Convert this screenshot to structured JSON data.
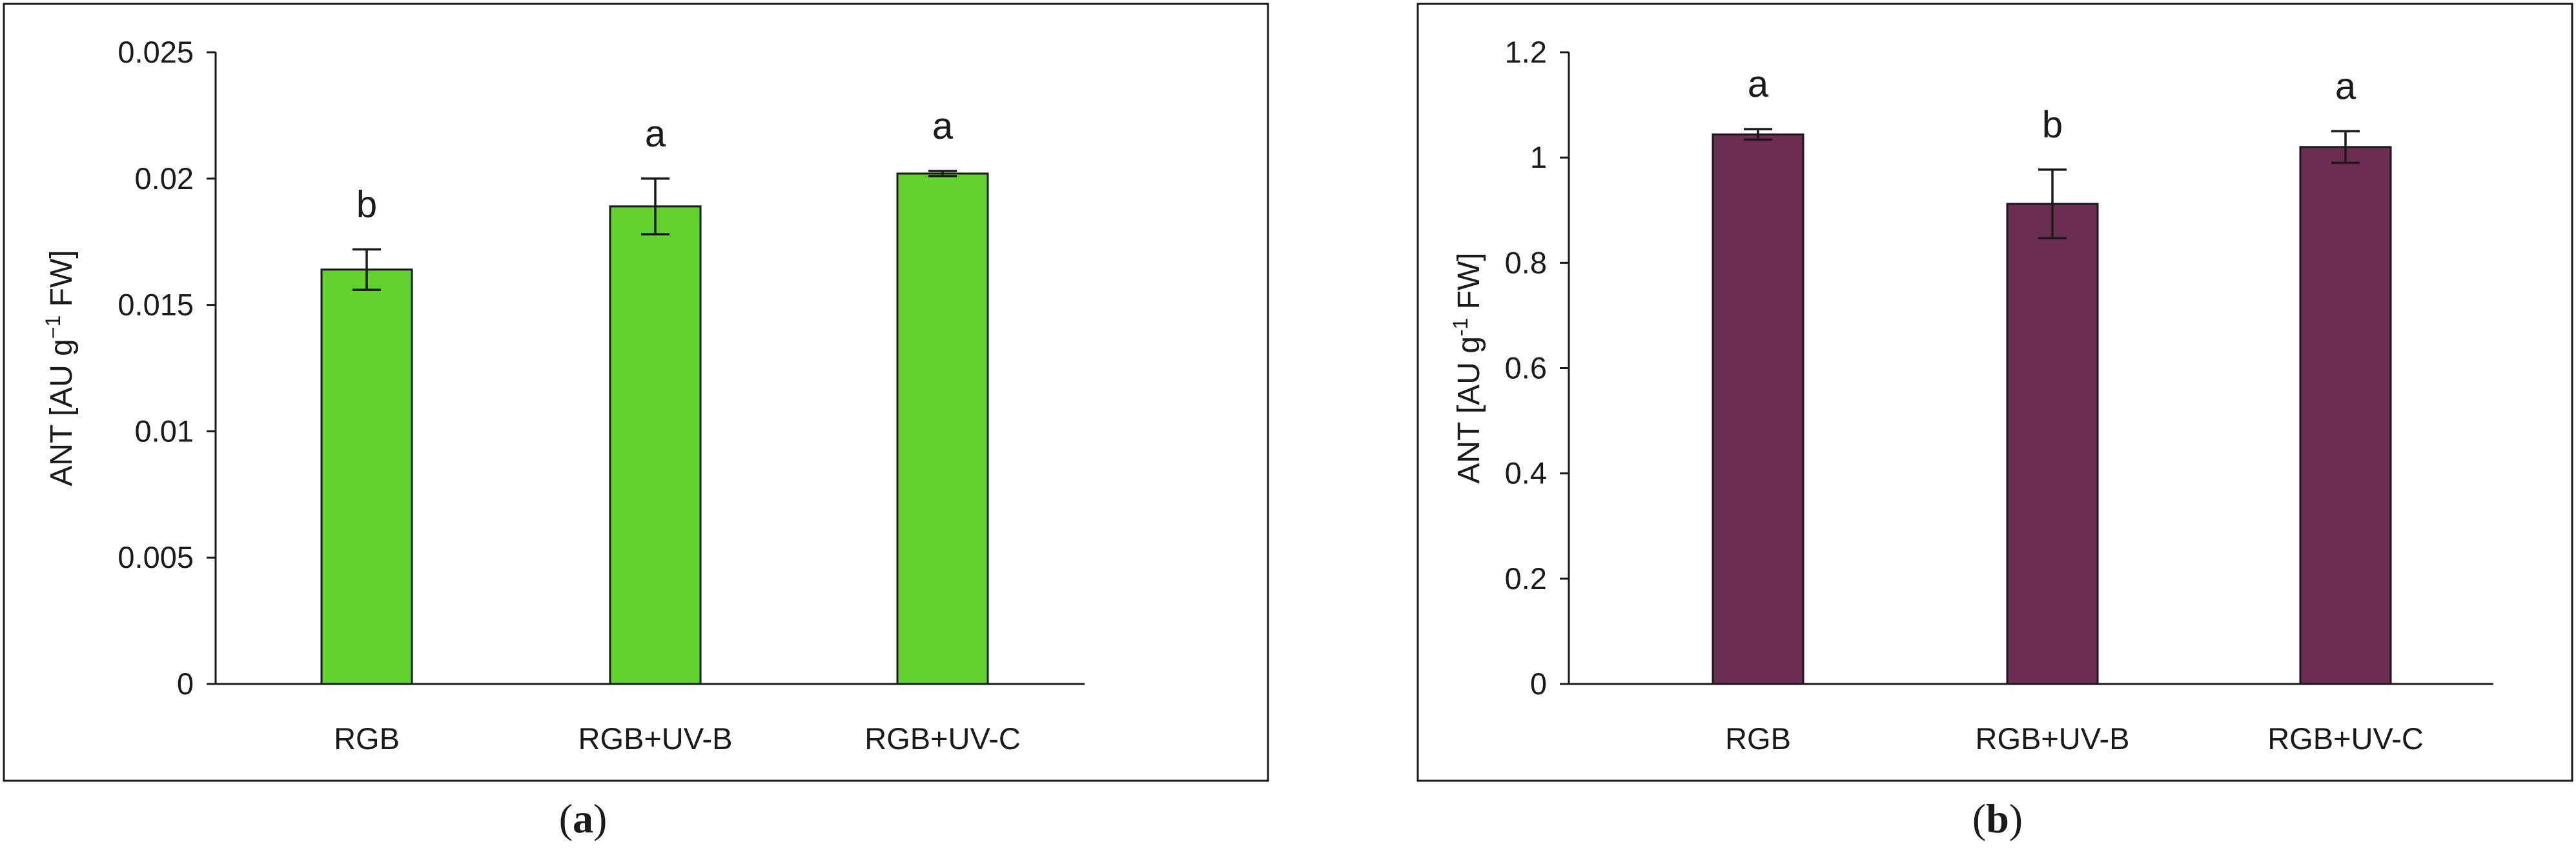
{
  "chart_data": [
    {
      "panel": "a",
      "caption_open": "(",
      "caption_letter": "a",
      "caption_close": ")",
      "type": "bar",
      "categories": [
        "RGB",
        "RGB+UV-B",
        "RGB+UV-C"
      ],
      "values": [
        0.0164,
        0.0189,
        0.0202
      ],
      "errors": [
        0.0008,
        0.0011,
        0.0001
      ],
      "significance": [
        "b",
        "a",
        "a"
      ],
      "ylabel_prefix": "ANT [AU g",
      "ylabel_sup": "−1",
      "ylabel_suffix": " FW]",
      "yticks": [
        "0",
        "0.005",
        "0.01",
        "0.015",
        "0.02",
        "0.025"
      ],
      "ylim": [
        0,
        0.025
      ],
      "bar_color": "#63D22E",
      "grid": false
    },
    {
      "panel": "b",
      "caption_open": "(",
      "caption_letter": "b",
      "caption_close": ")",
      "type": "bar",
      "categories": [
        "RGB",
        "RGB+UV-B",
        "RGB+UV-C"
      ],
      "values": [
        1.044,
        0.912,
        1.02
      ],
      "errors": [
        0.01,
        0.065,
        0.03
      ],
      "significance": [
        "a",
        "b",
        "a"
      ],
      "ylabel_prefix": "ANT [AU g",
      "ylabel_sup": "-1",
      "ylabel_suffix": " FW]",
      "yticks": [
        "0",
        "0.2",
        "0.4",
        "0.6",
        "0.8",
        "1",
        "1.2"
      ],
      "ylim": [
        0,
        1.2
      ],
      "bar_color": "#6B2E52",
      "grid": false
    }
  ]
}
